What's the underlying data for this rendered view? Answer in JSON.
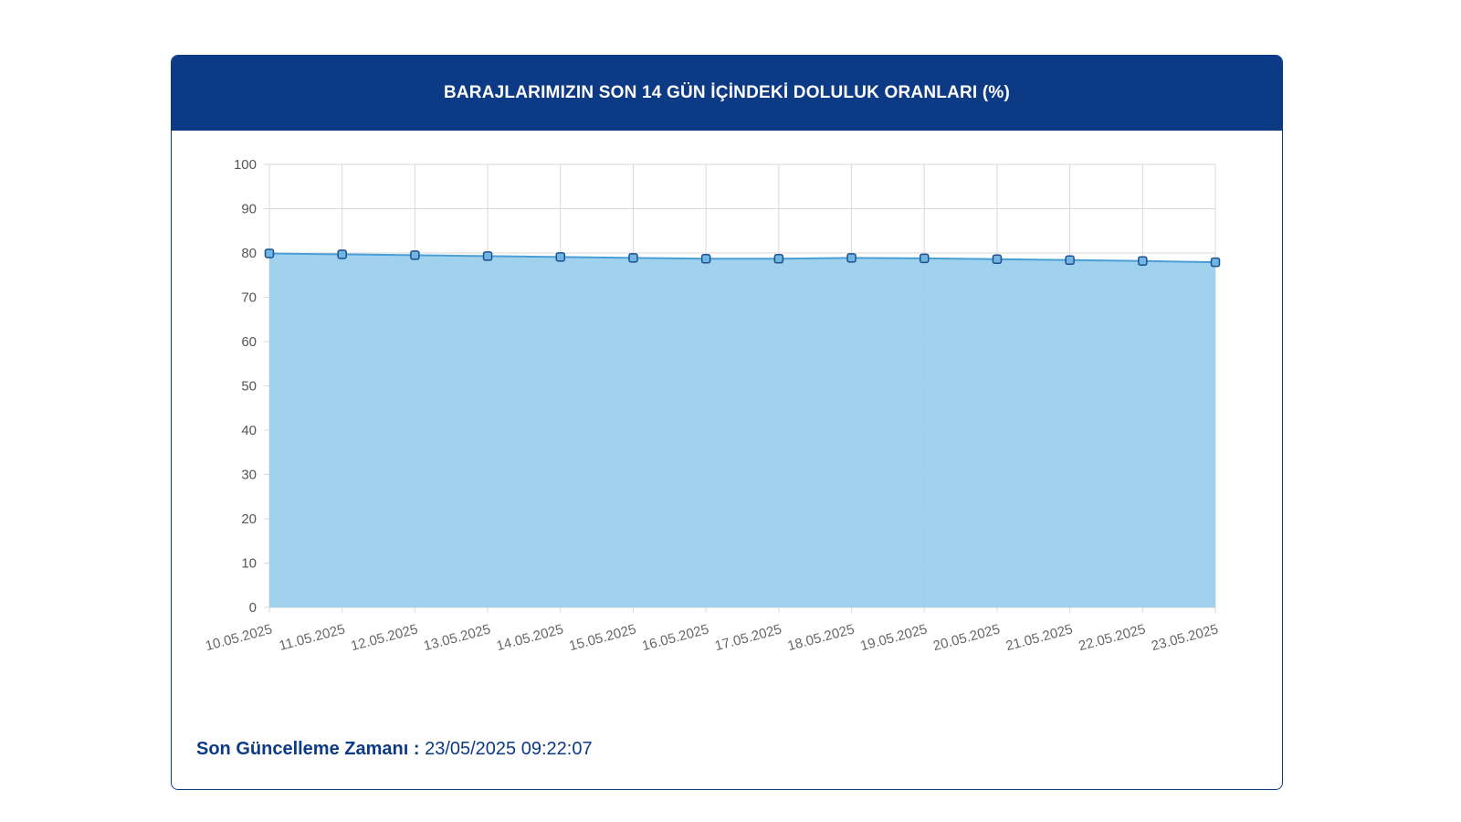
{
  "header": {
    "title": "BARAJLARIMIZIN SON 14 GÜN İÇİNDEKİ DOLULUK ORANLARI (%)"
  },
  "footer": {
    "label": "Son Güncelleme Zamanı :",
    "value": "23/05/2025 09:22:07"
  },
  "colors": {
    "header_bg": "#0d3a84",
    "area_fill": "#9bcfec",
    "line": "#4a9fd6",
    "point_fill": "#6fb6e3",
    "point_stroke": "#1f4f8f",
    "grid": "#d9d9d9"
  },
  "chart_data": {
    "type": "area",
    "x": [
      "10.05.2025",
      "11.05.2025",
      "12.05.2025",
      "13.05.2025",
      "14.05.2025",
      "15.05.2025",
      "16.05.2025",
      "17.05.2025",
      "18.05.2025",
      "19.05.2025",
      "20.05.2025",
      "21.05.2025",
      "22.05.2025",
      "23.05.2025"
    ],
    "series": [
      {
        "values": [
          79.9,
          79.7,
          79.5,
          79.3,
          79.1,
          78.9,
          78.7,
          78.7,
          78.9,
          78.8,
          78.6,
          78.4,
          78.2,
          77.9
        ]
      }
    ],
    "ylim": [
      0,
      100
    ],
    "yticks": [
      0,
      10,
      20,
      30,
      40,
      50,
      60,
      70,
      80,
      90,
      100
    ],
    "grid": true,
    "legend": "none"
  }
}
